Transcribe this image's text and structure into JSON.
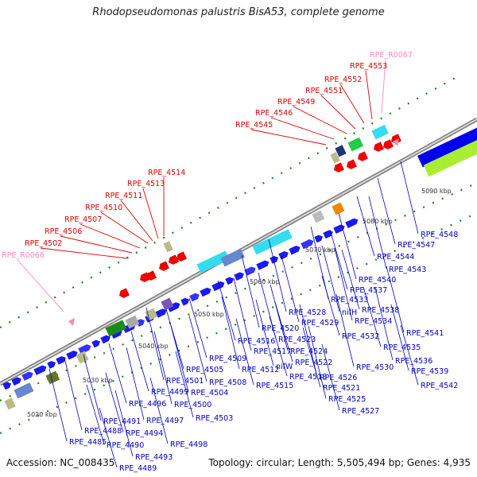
{
  "title": "Rhodopseudomonas palustris BisA53, complete genome",
  "footer": {
    "accession": "Accession: NC_008435",
    "topology": "Topology: circular; Length: 5,505,494 bp; Genes: 4,935"
  },
  "colors": {
    "red_label": "#e00000",
    "blue_label": "#0000c0",
    "pink_label": "#ff88bb",
    "backbone": "#999999",
    "tick": "#208020"
  },
  "kbp_ticks": [
    "5020 kbp",
    "5030 kbp",
    "5040 kbp",
    "5050 kbp",
    "5060 kbp",
    "5070 kbp",
    "5080 kbp",
    "5090 kbp"
  ],
  "top_labels": [
    {
      "text": "RPE_R0067",
      "kind": "pink"
    },
    {
      "text": "RPE_4553",
      "kind": "red"
    },
    {
      "text": "RPE_4552",
      "kind": "red"
    },
    {
      "text": "RPE_4551",
      "kind": "red"
    },
    {
      "text": "RPE_4549",
      "kind": "red"
    },
    {
      "text": "RPE_4546",
      "kind": "red"
    },
    {
      "text": "RPE_4545",
      "kind": "red"
    },
    {
      "text": "RPE_4514",
      "kind": "red"
    },
    {
      "text": "RPE_4513",
      "kind": "red"
    },
    {
      "text": "RPE_4511",
      "kind": "red"
    },
    {
      "text": "RPE_4510",
      "kind": "red"
    },
    {
      "text": "RPE_4507",
      "kind": "red"
    },
    {
      "text": "RPE_4506",
      "kind": "red"
    },
    {
      "text": "RPE_4502",
      "kind": "red"
    },
    {
      "text": "RPE_R0066",
      "kind": "pink"
    }
  ],
  "bottom_labels": [
    "RPE_4548",
    "RPE_4547",
    "RPE_4544",
    "RPE_4543",
    "RPE_4540",
    "RPE_4537",
    "RPE_4533",
    "nifH",
    "RPE_4538",
    "RPE_4534",
    "RPE_4541",
    "RPE_4535",
    "RPE_4536",
    "RPE_4539",
    "RPE_4542",
    "RPE_4528",
    "RPE_4529",
    "RPE_4532",
    "RPE_4520",
    "RPE_4523",
    "RPE_4516",
    "RPE_4517",
    "RPE_4524",
    "RPE_4522",
    "RPE_4530",
    "nifW",
    "RPE_4518",
    "RPE_4526",
    "RPE_4515",
    "RPE_4521",
    "RPE_4525",
    "RPE_4527",
    "RPE_4509",
    "RPE_4512",
    "RPE_4508",
    "RPE_4505",
    "RPE_4501",
    "RPE_4504",
    "RPE_4499",
    "RPE_4500",
    "RPE_4503",
    "RPE_4496",
    "RPE_4497",
    "RPE_4491",
    "RPE_4494",
    "RPE_4488",
    "RPE_4498",
    "RPE_4490",
    "RPE_4485",
    "RPE_4493",
    "RPE_4489"
  ]
}
